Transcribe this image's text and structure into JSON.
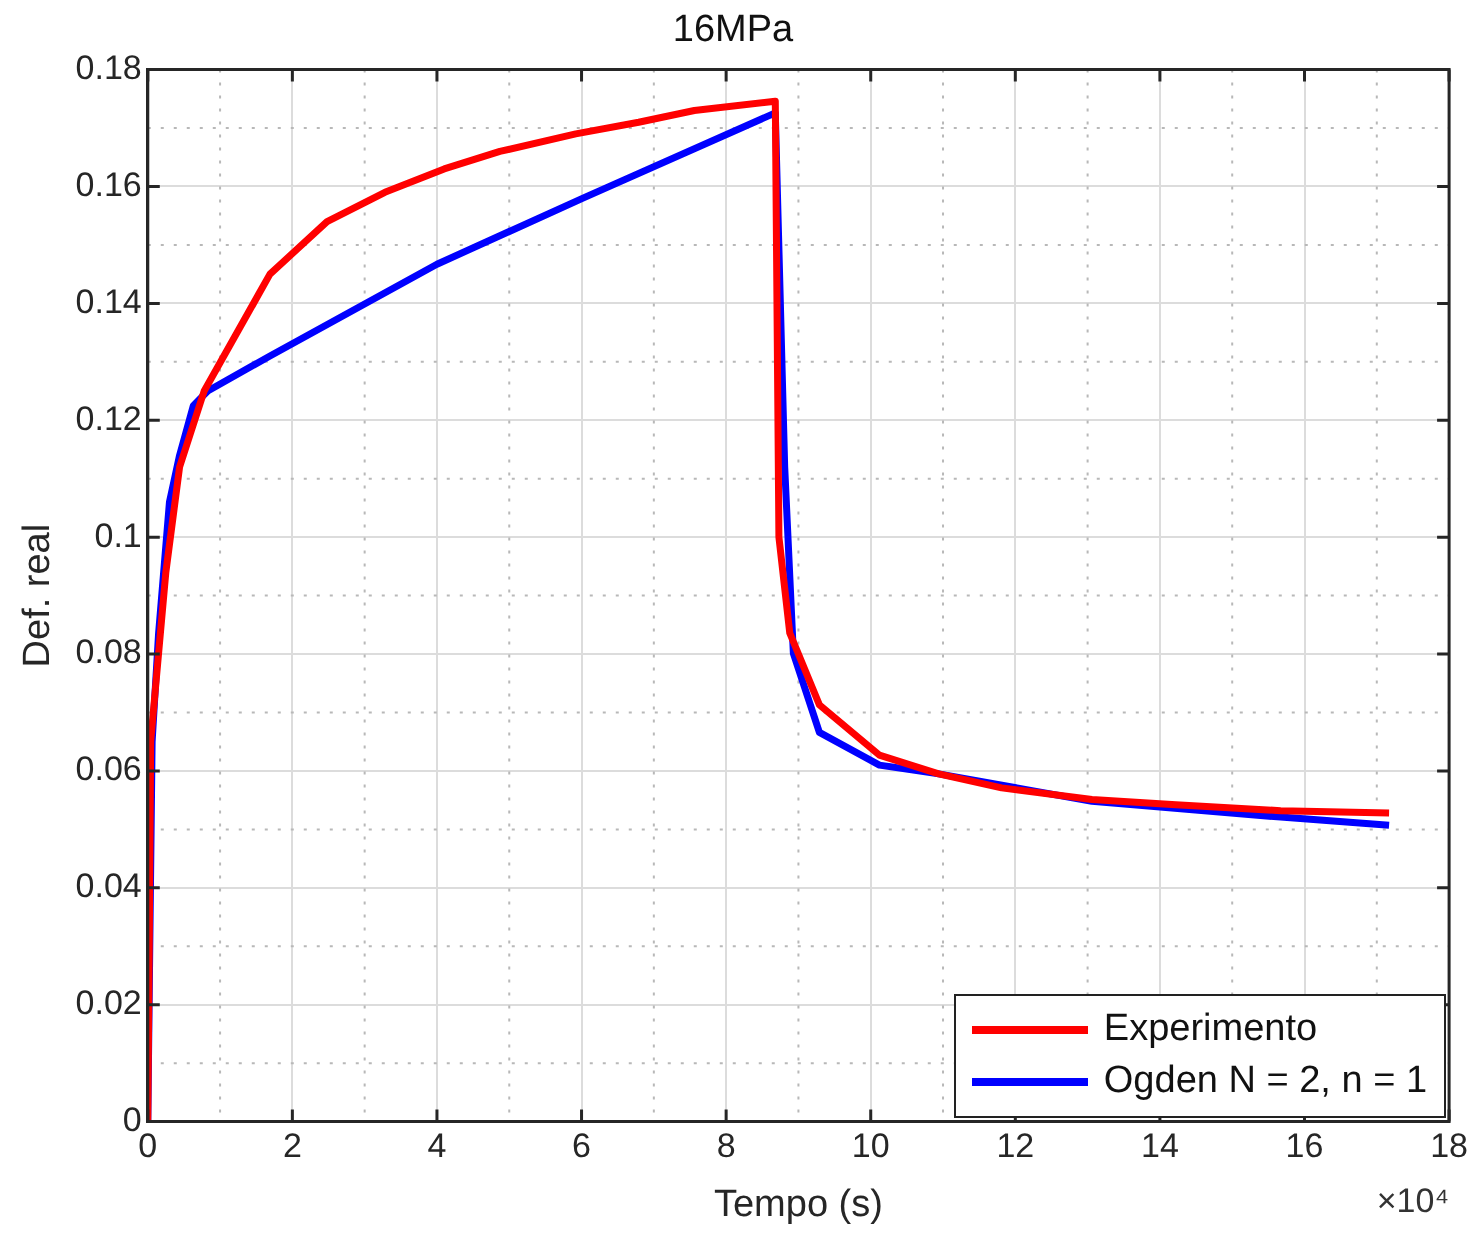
{
  "chart_data": {
    "type": "line",
    "title": "16MPa",
    "xlabel": "Tempo (s)",
    "ylabel": "Def. real",
    "annotations": [
      "×10⁴"
    ],
    "xlim": [
      0,
      18
    ],
    "xticks": [
      0,
      2,
      4,
      6,
      8,
      10,
      12,
      14,
      16,
      18
    ],
    "ylim": [
      0,
      0.18
    ],
    "yticks": [
      0,
      0.02,
      0.04,
      0.06,
      0.08,
      0.1,
      0.12,
      0.14,
      0.16,
      0.18
    ],
    "grid": true,
    "legend": "bottom right",
    "line_style": "solid",
    "marker": "none",
    "series": [
      {
        "name": "Experimento",
        "color": "#ff0000",
        "x": [
          0,
          0.02,
          0.04,
          0.25,
          0.44,
          0.78,
          1.69,
          2.48,
          3.28,
          4.1,
          4.87,
          5.92,
          6.79,
          7.56,
          8.68,
          8.73,
          8.88,
          9.29,
          10.12,
          10.94,
          11.81,
          13.06,
          14.22,
          15.67,
          17.17
        ],
        "values": [
          0,
          0.029,
          0.065,
          0.094,
          0.112,
          0.125,
          0.145,
          0.154,
          0.159,
          0.163,
          0.166,
          0.169,
          0.171,
          0.173,
          0.1746,
          0.1,
          0.0836,
          0.0713,
          0.0627,
          0.0595,
          0.0571,
          0.0551,
          0.0542,
          0.0532,
          0.0528
        ]
      },
      {
        "name": "Ogden N = 2, n = 1",
        "color": "#0000ff",
        "x": [
          0,
          0.06,
          0.15,
          0.3,
          0.44,
          0.63,
          0.83,
          1.69,
          4,
          6.02,
          8.68,
          8.81,
          8.93,
          9.29,
          10.12,
          10.94,
          13.06,
          15.67,
          17.17
        ],
        "values": [
          0,
          0.065,
          0.0836,
          0.106,
          0.114,
          0.1225,
          0.125,
          0.131,
          0.1467,
          0.158,
          0.1726,
          0.112,
          0.0801,
          0.0666,
          0.061,
          0.0595,
          0.0548,
          0.0521,
          0.0507
        ]
      }
    ]
  }
}
